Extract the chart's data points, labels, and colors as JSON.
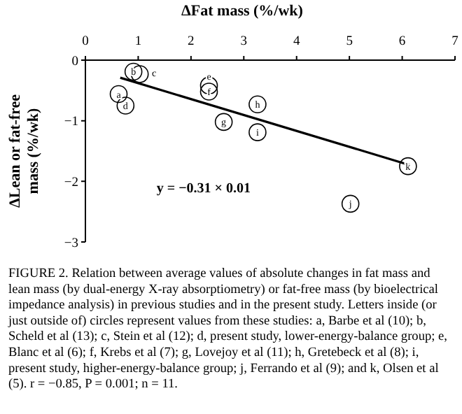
{
  "chart_data": {
    "type": "scatter",
    "xlabel": "ΔFat mass (%/wk)",
    "ylabel": "ΔLean or fat-free mass (%/wk)",
    "xlim": [
      0,
      7
    ],
    "xticks": [
      0,
      1,
      2,
      3,
      4,
      5,
      6,
      7
    ],
    "ylim": [
      -3,
      0
    ],
    "yticks": [
      {
        "value": 0,
        "label": "0"
      },
      {
        "value": -1,
        "label": "−1"
      },
      {
        "value": -2,
        "label": "−2"
      },
      {
        "value": -3,
        "label": "−3"
      }
    ],
    "marker": "circle",
    "series": [
      {
        "type": "scatter",
        "color": "#000000",
        "x": [
          0.63,
          0.91,
          1.03,
          0.76,
          2.34,
          2.34,
          2.62,
          3.26,
          3.26,
          5.02,
          6.11
        ],
        "values": [
          -0.56,
          -0.19,
          -0.23,
          -0.75,
          -0.42,
          -0.52,
          -1.02,
          -0.73,
          -1.19,
          -2.37,
          -1.75
        ]
      },
      {
        "type": "line",
        "marker": "none",
        "color": "#000000",
        "x": [
          0.66,
          6.14
        ],
        "values": [
          -0.29,
          -1.73
        ]
      }
    ],
    "annotations": [
      {
        "text": "a",
        "x": 0.63,
        "y": -0.56
      },
      {
        "text": "b",
        "x": 0.91,
        "y": -0.19
      },
      {
        "text": "c",
        "x": 1.3,
        "y": -0.21
      },
      {
        "text": "d",
        "x": 0.76,
        "y": -0.75
      },
      {
        "text": "e",
        "x": 2.34,
        "y": -0.26
      },
      {
        "text": "f",
        "x": 2.34,
        "y": -0.52
      },
      {
        "text": "g",
        "x": 2.62,
        "y": -1.02
      },
      {
        "text": "h",
        "x": 3.26,
        "y": -0.73
      },
      {
        "text": "i",
        "x": 3.26,
        "y": -1.19
      },
      {
        "text": "j",
        "x": 5.02,
        "y": -2.37
      },
      {
        "text": "k",
        "x": 6.11,
        "y": -1.75
      },
      "y = −0.31 × 0.01",
      "FIGURE 2. Relation between average values of absolute changes in fat mass and lean mass (by dual-energy X-ray absorptiometry) or fat-free mass (by bioelectrical impedance analysis) in previous studies and in the present study. Letters inside (or just outside of) circles represent values from these studies: a, Barbe et al (10); b, Scheld et al (13); c, Stein et al (12); d, present study, lower-energy-balance group; e, Blanc et al (6); f, Krebs et al (7); g, Lovejoy et al (11); h, Gretebeck et al (8); i, present study, higher-energy-balance group; j, Ferrando et al (9); and k, Olsen et al (5). r = −0.85, P = 0.001; n = 11."
    ]
  }
}
